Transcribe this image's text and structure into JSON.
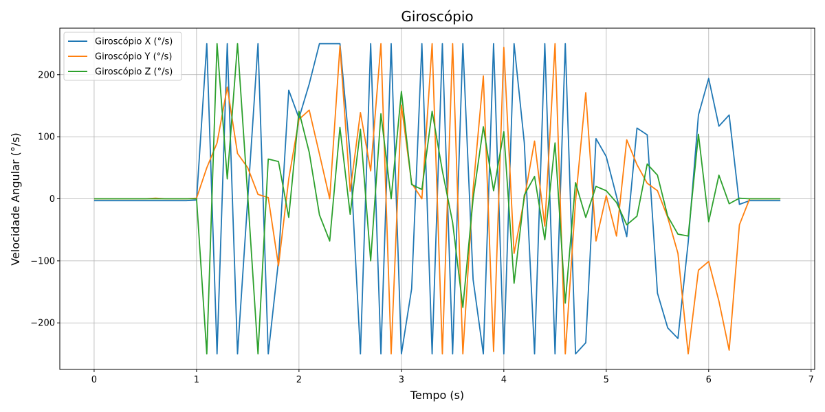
{
  "chart_data": {
    "type": "line",
    "title": "Giroscópio",
    "xlabel": "Tempo (s)",
    "ylabel": "Velocidade Angular (°/s)",
    "xlim": [
      -0.335,
      7.035
    ],
    "ylim": [
      -275,
      275
    ],
    "xticks": [
      0,
      1,
      2,
      3,
      4,
      5,
      6,
      7
    ],
    "yticks": [
      -200,
      -100,
      0,
      100,
      200
    ],
    "xtick_labels": [
      "0",
      "1",
      "2",
      "3",
      "4",
      "5",
      "6",
      "7"
    ],
    "ytick_labels": [
      "−200",
      "−100",
      "0",
      "100",
      "200"
    ],
    "grid": true,
    "legend_position": "top-left",
    "x": [
      0.0,
      0.1,
      0.2,
      0.3,
      0.4,
      0.5,
      0.6,
      0.7,
      0.8,
      0.9,
      1.0,
      1.1,
      1.2,
      1.3,
      1.4,
      1.5,
      1.6,
      1.7,
      1.8,
      1.9,
      2.0,
      2.1,
      2.2,
      2.3,
      2.4,
      2.5,
      2.6,
      2.7,
      2.8,
      2.9,
      3.0,
      3.1,
      3.2,
      3.3,
      3.4,
      3.5,
      3.6,
      3.7,
      3.8,
      3.9,
      4.0,
      4.1,
      4.2,
      4.3,
      4.4,
      4.5,
      4.6,
      4.7,
      4.8,
      4.9,
      5.0,
      5.1,
      5.2,
      5.3,
      5.4,
      5.5,
      5.6,
      5.7,
      5.8,
      5.9,
      6.0,
      6.1,
      6.2,
      6.3,
      6.4,
      6.5,
      6.6,
      6.7
    ],
    "series": [
      {
        "name": "Giroscópio X (°/s)",
        "color": "#1f77b4",
        "values": [
          -3,
          -3,
          -3,
          -3,
          -3,
          -3,
          -3,
          -3,
          -3,
          -3,
          -2,
          250,
          -250,
          250,
          -250,
          0,
          250,
          -250,
          -100,
          175,
          130,
          185,
          250,
          250,
          250,
          70,
          -250,
          250,
          -250,
          250,
          -250,
          -145,
          250,
          -250,
          250,
          -250,
          250,
          -130,
          -250,
          250,
          -250,
          250,
          90,
          -250,
          250,
          -250,
          250,
          -250,
          -232,
          97,
          68,
          4,
          -61,
          114,
          103,
          -152,
          -208,
          -225,
          -70,
          135,
          194,
          117,
          135,
          -9,
          -3,
          -3,
          -3,
          -3
        ]
      },
      {
        "name": "Giroscópio Y (°/s)",
        "color": "#ff7f0e",
        "values": [
          0,
          0,
          0,
          0,
          0,
          0,
          1,
          0,
          0,
          0,
          1,
          50,
          90,
          180,
          73,
          50,
          7,
          2,
          -108,
          32,
          128,
          143,
          72,
          0,
          246,
          12,
          139,
          45,
          250,
          -250,
          151,
          25,
          0,
          250,
          -250,
          250,
          -250,
          15,
          198,
          -246,
          244,
          -88,
          0,
          93,
          -44,
          250,
          -250,
          -4,
          171,
          -68,
          5,
          -60,
          95,
          55,
          25,
          13,
          -30,
          -88,
          -250,
          -115,
          -101,
          -165,
          -244,
          -42,
          0,
          0,
          0,
          0
        ]
      },
      {
        "name": "Giroscópio Z (°/s)",
        "color": "#2ca02c",
        "values": [
          0,
          0,
          0,
          0,
          0,
          0,
          0,
          0,
          0,
          0,
          0,
          -250,
          250,
          32,
          250,
          4,
          -250,
          64,
          60,
          -30,
          141,
          75,
          -26,
          -68,
          115,
          -25,
          112,
          -100,
          137,
          0,
          173,
          23,
          15,
          141,
          45,
          -38,
          -175,
          0,
          116,
          13,
          108,
          -136,
          6,
          36,
          -66,
          90,
          -168,
          26,
          -30,
          20,
          13,
          -6,
          -42,
          -28,
          56,
          38,
          -28,
          -57,
          -60,
          104,
          -37,
          38,
          -8,
          1,
          0,
          0,
          0,
          0
        ]
      }
    ]
  }
}
